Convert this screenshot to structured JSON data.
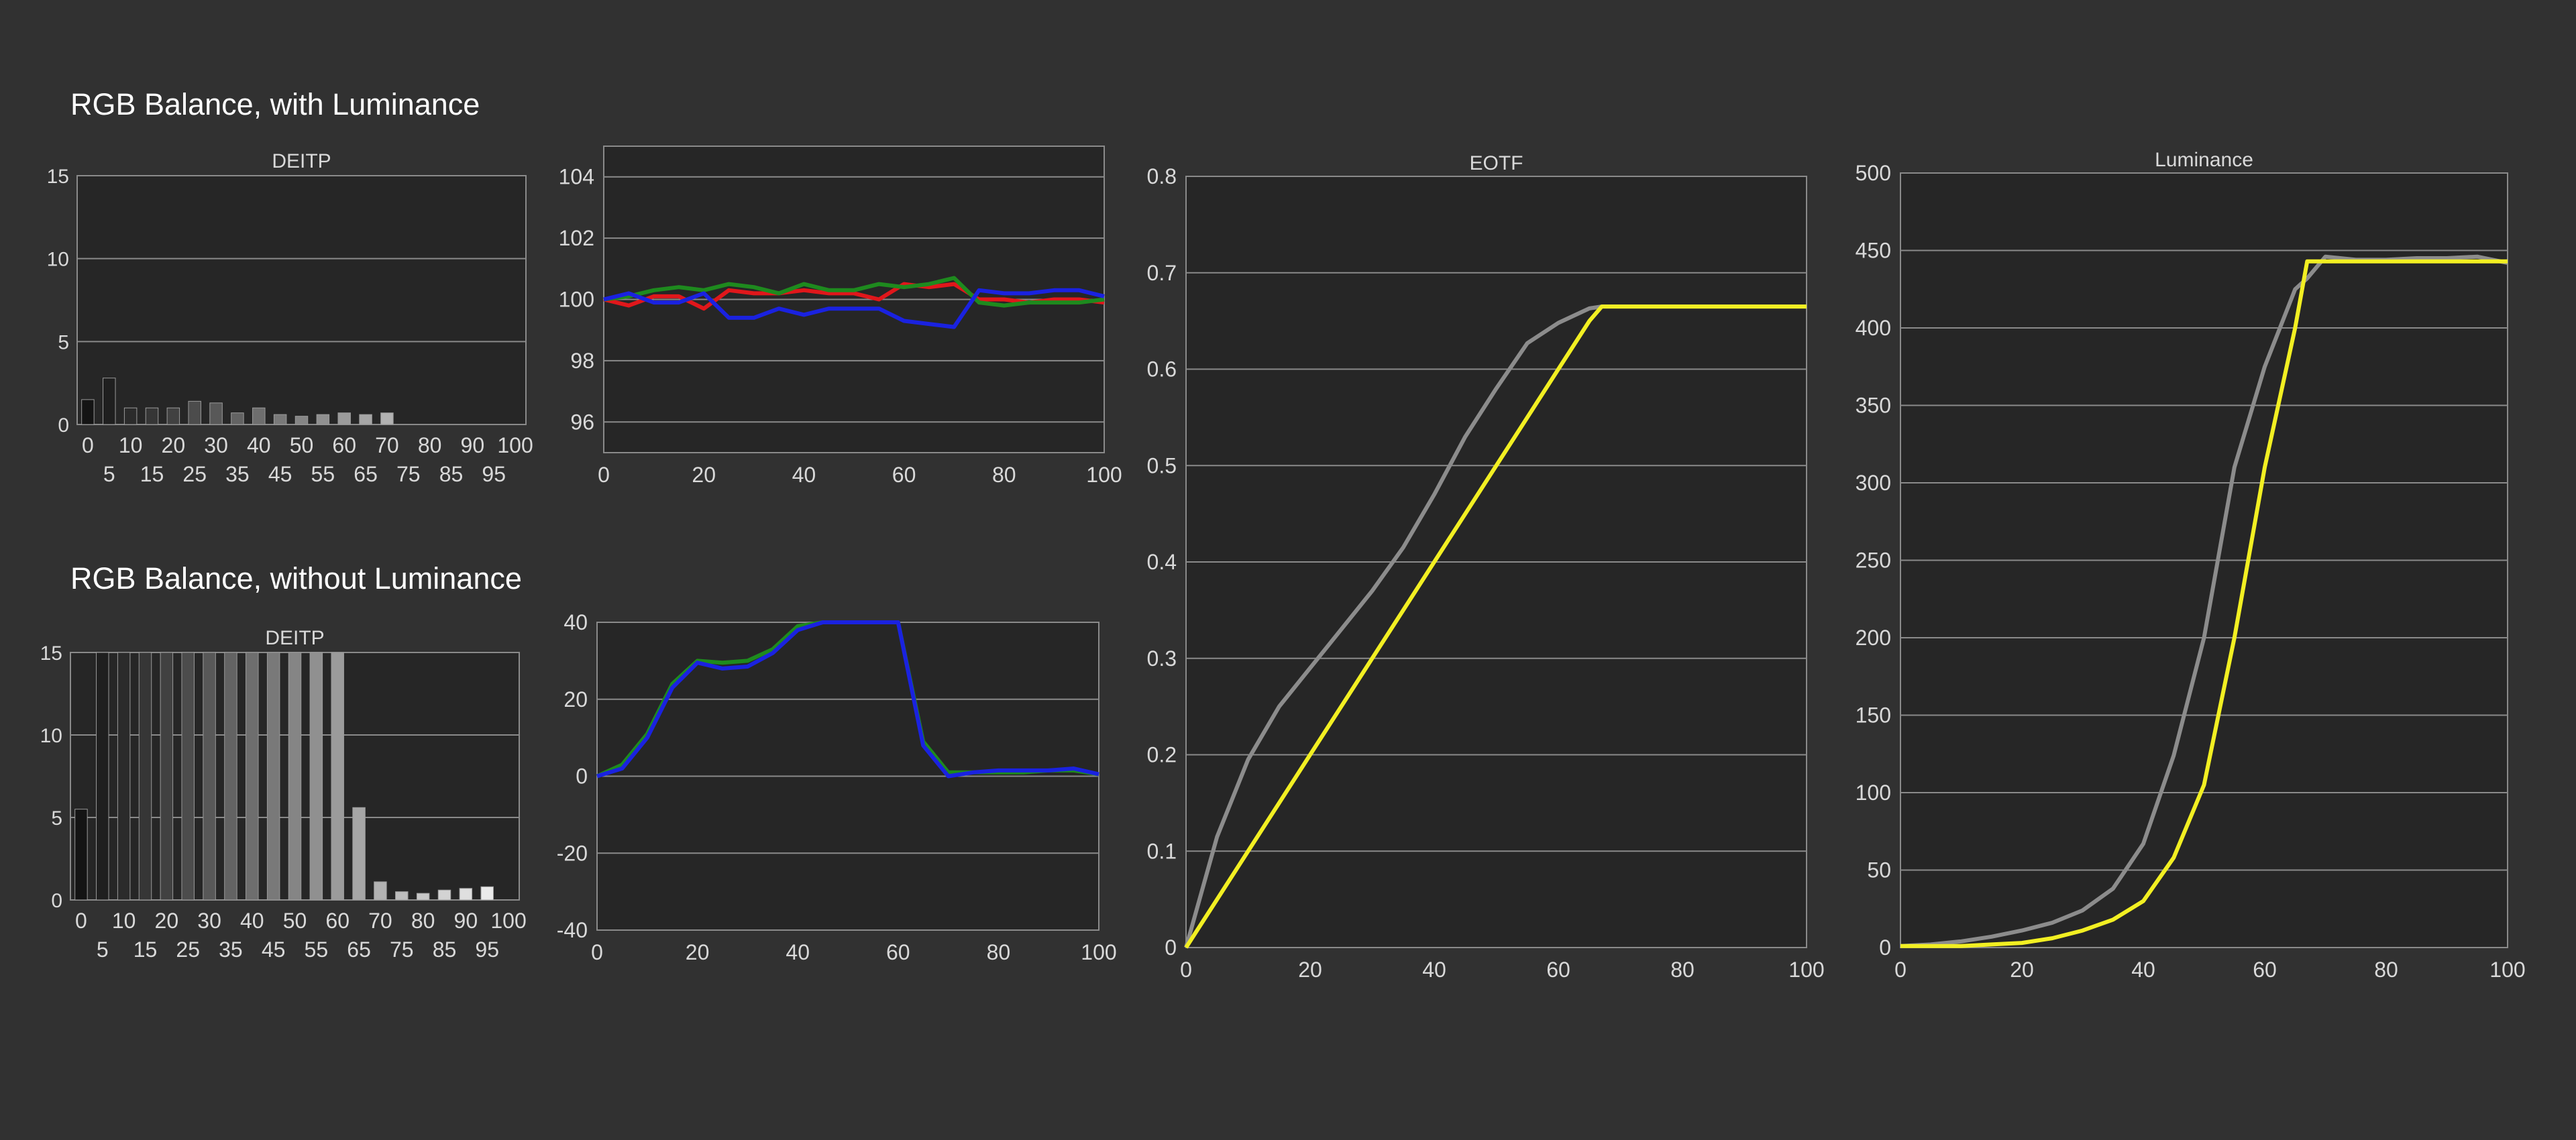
{
  "headings": {
    "with_luminance": "RGB Balance, with Luminance",
    "without_luminance": "RGB Balance, without Luminance"
  },
  "colors": {
    "page_background": "#313131",
    "plot_background": "#262626",
    "gridline": "#8a8a8a",
    "text": "#d9d9d9",
    "red": "#e0171b",
    "green": "#1e8a1e",
    "blue": "#1a22e0",
    "target": "#8c8c8c",
    "measured": "#f2ef22"
  },
  "chart_data": [
    {
      "id": "deitp-with-luminance",
      "type": "bar",
      "title": "DEITP",
      "categories": [
        "0",
        "5",
        "10",
        "15",
        "20",
        "25",
        "30",
        "35",
        "40",
        "45",
        "50",
        "55",
        "60",
        "65",
        "70",
        "75",
        "80",
        "85",
        "90",
        "95",
        "100"
      ],
      "values": [
        1.5,
        2.8,
        1.0,
        1.0,
        1.0,
        1.4,
        1.3,
        0.7,
        1.0,
        0.6,
        0.5,
        0.6,
        0.7,
        0.6,
        0.7,
        0,
        0,
        0,
        0,
        0,
        0
      ],
      "ylim": [
        0,
        15
      ],
      "yticks": [
        0,
        5,
        10,
        15
      ],
      "grid": true
    },
    {
      "id": "rgb-with-luminance",
      "type": "line",
      "x": [
        0,
        5,
        10,
        15,
        20,
        25,
        30,
        35,
        40,
        45,
        50,
        55,
        60,
        65,
        70,
        75,
        80,
        85,
        90,
        95,
        100
      ],
      "series": [
        {
          "color": "red",
          "values": [
            100.0,
            99.8,
            100.1,
            100.1,
            99.7,
            100.3,
            100.2,
            100.2,
            100.3,
            100.2,
            100.2,
            100.0,
            100.5,
            100.4,
            100.5,
            100.0,
            100.0,
            99.9,
            100.0,
            100.0,
            99.9
          ]
        },
        {
          "color": "green",
          "values": [
            100.0,
            100.1,
            100.3,
            100.4,
            100.3,
            100.5,
            100.4,
            100.2,
            100.5,
            100.3,
            100.3,
            100.5,
            100.4,
            100.5,
            100.7,
            99.9,
            99.8,
            99.9,
            99.9,
            99.9,
            100.0
          ]
        },
        {
          "color": "blue",
          "values": [
            100.0,
            100.2,
            99.9,
            99.9,
            100.2,
            99.4,
            99.4,
            99.7,
            99.5,
            99.7,
            99.7,
            99.7,
            99.3,
            99.2,
            99.1,
            100.3,
            100.2,
            100.2,
            100.3,
            100.3,
            100.1
          ]
        }
      ],
      "xlim": [
        0,
        100
      ],
      "ylim": [
        95,
        105
      ],
      "xticks": [
        0,
        20,
        40,
        60,
        80,
        100
      ],
      "yticks": [
        96,
        98,
        100,
        102,
        104
      ],
      "grid": true
    },
    {
      "id": "deitp-without-luminance",
      "type": "bar",
      "title": "DEITP",
      "categories": [
        "0",
        "5",
        "10",
        "15",
        "20",
        "25",
        "30",
        "35",
        "40",
        "45",
        "50",
        "55",
        "60",
        "65",
        "70",
        "75",
        "80",
        "85",
        "90",
        "95",
        "100"
      ],
      "values": [
        5.5,
        15,
        15,
        15,
        15,
        15,
        15,
        15,
        15,
        15,
        15,
        15,
        15,
        5.6,
        1.1,
        0.5,
        0.4,
        0.6,
        0.7,
        0.8,
        0
      ],
      "ylim": [
        0,
        15
      ],
      "yticks": [
        0,
        5,
        10,
        15
      ],
      "grid": true
    },
    {
      "id": "rgb-without-luminance",
      "type": "line",
      "x": [
        0,
        5,
        10,
        15,
        20,
        25,
        30,
        35,
        40,
        45,
        50,
        55,
        60,
        65,
        70,
        75,
        80,
        85,
        90,
        95,
        100
      ],
      "series": [
        {
          "color": "green",
          "values": [
            0,
            3,
            11,
            24,
            30,
            29.5,
            30,
            33,
            39,
            40,
            40,
            40,
            40,
            9,
            1,
            1,
            1,
            1,
            1.5,
            1.5,
            0.5
          ]
        },
        {
          "color": "blue",
          "values": [
            0,
            2,
            10,
            23,
            29.5,
            28,
            28.5,
            32,
            38,
            40,
            40,
            40,
            40,
            8,
            0,
            1,
            1.5,
            1.5,
            1.5,
            2,
            0.5
          ]
        }
      ],
      "xlim": [
        0,
        100
      ],
      "ylim": [
        -40,
        40
      ],
      "xticks": [
        0,
        20,
        40,
        60,
        80,
        100
      ],
      "yticks": [
        -40,
        -20,
        0,
        20,
        40
      ],
      "grid": true
    },
    {
      "id": "eotf",
      "type": "line",
      "title": "EOTF",
      "x": [
        0,
        5,
        10,
        15,
        20,
        25,
        30,
        35,
        40,
        45,
        50,
        55,
        60,
        65,
        67,
        70,
        75,
        80,
        85,
        90,
        95,
        100
      ],
      "series": [
        {
          "color": "target",
          "values": [
            0.0,
            0.115,
            0.195,
            0.25,
            0.29,
            0.33,
            0.37,
            0.415,
            0.47,
            0.53,
            0.58,
            0.627,
            0.648,
            0.663,
            0.665,
            0.665,
            0.665,
            0.665,
            0.665,
            0.665,
            0.665,
            0.665
          ]
        },
        {
          "color": "measured",
          "values": [
            0.0,
            0.05,
            0.1,
            0.15,
            0.2,
            0.25,
            0.3,
            0.35,
            0.4,
            0.45,
            0.5,
            0.55,
            0.6,
            0.65,
            0.665,
            0.665,
            0.665,
            0.665,
            0.665,
            0.665,
            0.665,
            0.665
          ]
        }
      ],
      "xlim": [
        0,
        100
      ],
      "ylim": [
        0,
        0.8
      ],
      "xticks": [
        0,
        20,
        40,
        60,
        80,
        100
      ],
      "yticks": [
        0,
        0.1,
        0.2,
        0.3,
        0.4,
        0.5,
        0.6,
        0.7,
        0.8
      ],
      "grid": true
    },
    {
      "id": "luminance",
      "type": "line",
      "title": "Luminance",
      "x": [
        0,
        5,
        10,
        15,
        20,
        25,
        30,
        35,
        40,
        45,
        50,
        55,
        60,
        65,
        67,
        70,
        75,
        80,
        85,
        90,
        95,
        100
      ],
      "series": [
        {
          "color": "target",
          "values": [
            1,
            2,
            4,
            7,
            11,
            16,
            24,
            38,
            67,
            124,
            200,
            310,
            375,
            425,
            432,
            446,
            444,
            444,
            445,
            445,
            446,
            442
          ]
        },
        {
          "color": "measured",
          "values": [
            1,
            1,
            1,
            2,
            3,
            6,
            11,
            18,
            30,
            58,
            105,
            200,
            310,
            400,
            443,
            443,
            443,
            443,
            443,
            443,
            443,
            443
          ]
        }
      ],
      "xlim": [
        0,
        100
      ],
      "ylim": [
        0,
        500
      ],
      "xticks": [
        0,
        20,
        40,
        60,
        80,
        100
      ],
      "yticks": [
        0,
        50,
        100,
        150,
        200,
        250,
        300,
        350,
        400,
        450,
        500
      ],
      "grid": true
    }
  ]
}
